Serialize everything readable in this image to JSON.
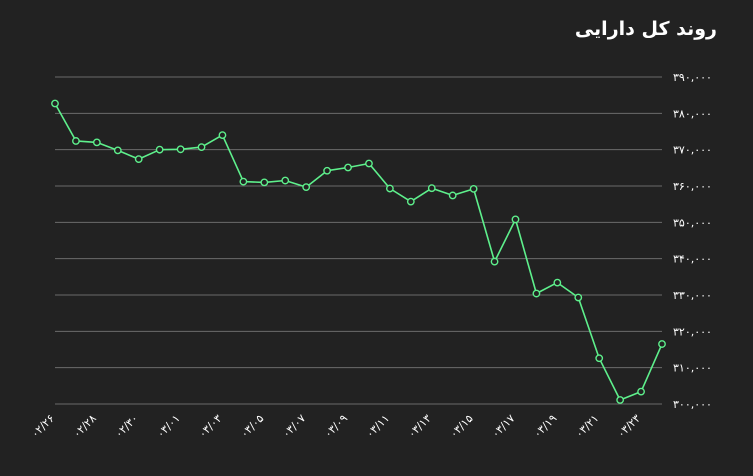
{
  "chart_data": {
    "type": "line",
    "title": "روند کل دارایی",
    "xlabel": "",
    "ylabel": "",
    "ylim": [
      300000,
      390000
    ],
    "y_ticks": [
      300000,
      310000,
      320000,
      330000,
      340000,
      350000,
      360000,
      370000,
      380000,
      390000
    ],
    "y_tick_labels": [
      "۳۰۰,۰۰۰",
      "۳۱۰,۰۰۰",
      "۳۲۰,۰۰۰",
      "۳۳۰,۰۰۰",
      "۳۴۰,۰۰۰",
      "۳۵۰,۰۰۰",
      "۳۶۰,۰۰۰",
      "۳۷۰,۰۰۰",
      "۳۸۰,۰۰۰",
      "۳۹۰,۰۰۰"
    ],
    "x_tick_labels": [
      "۰۲/۲۶",
      "۰۲/۲۸",
      "۰۲/۳۰",
      "۰۳/۰۱",
      "۰۳/۰۳",
      "۰۳/۰۵",
      "۰۳/۰۷",
      "۰۳/۰۹",
      "۰۳/۱۱",
      "۰۳/۱۳",
      "۰۳/۱۵",
      "۰۳/۱۷",
      "۰۳/۱۹",
      "۰۳/۲۱",
      "۰۳/۲۳"
    ],
    "grid": true,
    "legend": "none",
    "series": [
      {
        "values": [
          382700,
          372400,
          372000,
          369800,
          367400,
          370000,
          370100,
          370700,
          374000,
          361200,
          361000,
          361500,
          359700,
          364200,
          365100,
          366200,
          359300,
          355700,
          359400,
          357400,
          359200,
          339200,
          350800,
          330400,
          333400,
          329300,
          312600,
          301100,
          303400,
          316500
        ]
      }
    ],
    "colors": {
      "line": "#5ef08c",
      "marker_fill": "#222222",
      "grid": "#6b6b6b",
      "text": "#ffffff",
      "background": "#222222"
    }
  }
}
